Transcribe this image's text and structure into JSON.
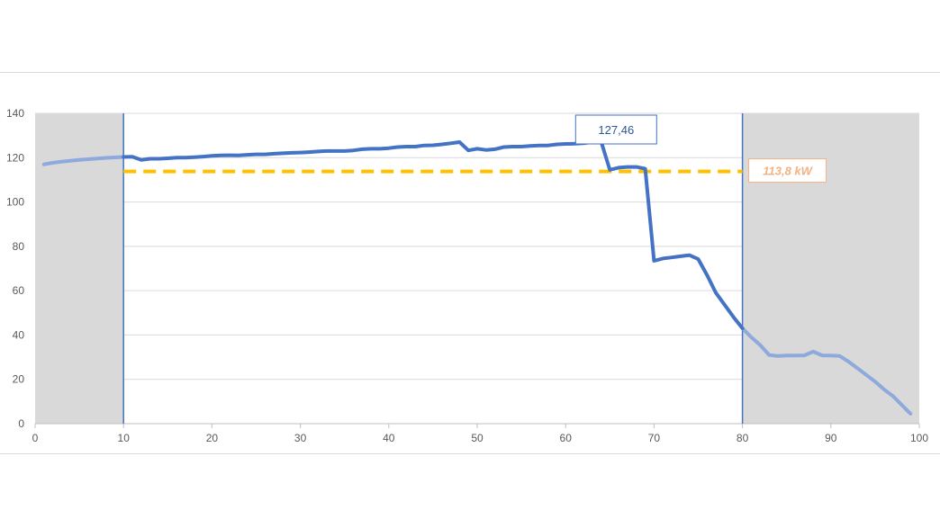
{
  "chart_data": {
    "type": "line",
    "title": "",
    "xlabel": "",
    "ylabel": "",
    "xlim": [
      0,
      100
    ],
    "ylim": [
      0,
      140
    ],
    "xticks": [
      0,
      10,
      20,
      30,
      40,
      50,
      60,
      70,
      80,
      90,
      100
    ],
    "yticks": [
      0,
      20,
      40,
      60,
      80,
      100,
      120,
      140
    ],
    "grid": true,
    "shaded_ranges": [
      [
        0,
        10
      ],
      [
        80,
        100
      ]
    ],
    "vertical_markers": [
      10,
      80
    ],
    "series": [
      {
        "color": "#4472c4",
        "x": [
          1,
          2,
          3,
          4,
          5,
          6,
          7,
          8,
          9,
          10,
          11,
          12,
          13,
          14,
          15,
          16,
          17,
          18,
          19,
          20,
          21,
          22,
          23,
          24,
          25,
          26,
          27,
          28,
          29,
          30,
          31,
          32,
          33,
          34,
          35,
          36,
          37,
          38,
          39,
          40,
          41,
          42,
          43,
          44,
          45,
          46,
          47,
          48,
          49,
          50,
          51,
          52,
          53,
          54,
          55,
          56,
          57,
          58,
          59,
          60,
          61,
          62,
          63,
          64,
          65,
          66,
          67,
          68,
          69,
          70,
          71,
          72,
          73,
          74,
          75,
          76,
          77,
          78,
          79,
          80,
          81,
          82,
          83,
          84,
          85,
          86,
          87,
          88,
          89,
          90,
          91,
          92,
          93,
          94,
          95,
          96,
          97,
          98,
          99
        ],
        "y": [
          117,
          117.7,
          118.2,
          118.6,
          119,
          119.3,
          119.6,
          119.9,
          120.1,
          120.3,
          120.4,
          119,
          119.5,
          119.5,
          119.7,
          120,
          120,
          120.2,
          120.5,
          120.8,
          121,
          121.1,
          121,
          121.3,
          121.5,
          121.5,
          121.8,
          122,
          122.2,
          122.3,
          122.5,
          122.8,
          123,
          123,
          123,
          123.3,
          123.8,
          124,
          124,
          124.3,
          124.8,
          125,
          125,
          125.5,
          125.6,
          126,
          126.5,
          127,
          123.3,
          124,
          123.5,
          123.8,
          124.8,
          125,
          125,
          125.3,
          125.5,
          125.5,
          126,
          126.2,
          126.3,
          126.5,
          127,
          127.46,
          114.5,
          115.5,
          115.8,
          115.8,
          115,
          73.5,
          74.5,
          75,
          75.5,
          76,
          74.2,
          67,
          59,
          53.5,
          48,
          43,
          39,
          35.5,
          31,
          30.5,
          30.7,
          30.7,
          30.8,
          32.5,
          30.8,
          30.7,
          30.5,
          28,
          25,
          22,
          19,
          15.5,
          12.5,
          8.5,
          4.5
        ]
      }
    ],
    "average_line": {
      "value": 113.8,
      "x_start": 10,
      "x_end": 80,
      "color": "#ffc000"
    },
    "annotations": [
      {
        "text": "127,46",
        "x": 65,
        "y": 127.46
      },
      {
        "text": "113,8 kW",
        "x": 80,
        "y": 113.8
      }
    ]
  },
  "colors": {
    "line": "#4472c4",
    "line_outside": "#8ea9db",
    "average": "#ffc000",
    "shade": "#d9d9d9",
    "grid": "#d9d9d9",
    "callout_max_border": "#4472c4",
    "callout_avg_border": "#f4b183"
  }
}
